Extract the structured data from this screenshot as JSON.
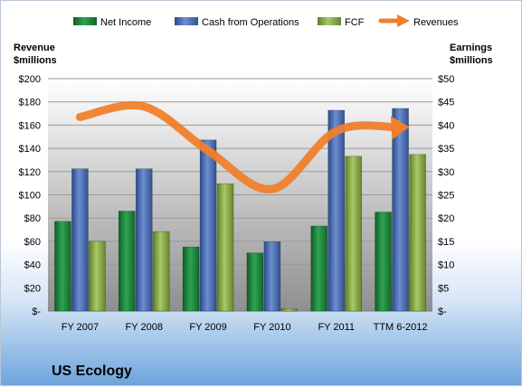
{
  "company": "US Ecology",
  "chart_data": {
    "type": "bar",
    "categories": [
      "FY 2007",
      "FY 2008",
      "FY 2009",
      "FY 2010",
      "FY 2011",
      "TTM 6-2012"
    ],
    "left_axis": {
      "title_lines": [
        "Revenue",
        "$millions"
      ],
      "range": [
        0,
        200
      ],
      "ticks": [
        "$-",
        "$20",
        "$40",
        "$60",
        "$80",
        "$100",
        "$120",
        "$140",
        "$160",
        "$180",
        "$200"
      ]
    },
    "right_axis": {
      "title_lines": [
        "Earnings",
        "$millions"
      ],
      "range": [
        0,
        50
      ],
      "ticks": [
        "$-",
        "$5",
        "$10",
        "$15",
        "$20",
        "$25",
        "$30",
        "$35",
        "$40",
        "$45",
        "$50"
      ]
    },
    "series": [
      {
        "name": "Net Income",
        "kind": "bar",
        "axis": "right",
        "color": "#1e8a3e",
        "values": [
          19.3,
          21.5,
          13.8,
          12.5,
          18.3,
          21.3
        ]
      },
      {
        "name": "Cash from Operations",
        "kind": "bar",
        "axis": "right",
        "color": "#4a6bb4",
        "values": [
          30.6,
          30.6,
          36.8,
          14.9,
          43.2,
          43.6
        ]
      },
      {
        "name": "FCF",
        "kind": "bar",
        "axis": "right",
        "color": "#8cb04a",
        "values": [
          15.0,
          17.1,
          27.4,
          0.5,
          33.3,
          33.7
        ]
      },
      {
        "name": "Revenues",
        "kind": "line",
        "axis": "left",
        "color": "#f07f2c",
        "values": [
          167,
          176,
          138,
          105,
          155,
          158
        ]
      }
    ],
    "legend_position": "top",
    "grid": true
  }
}
